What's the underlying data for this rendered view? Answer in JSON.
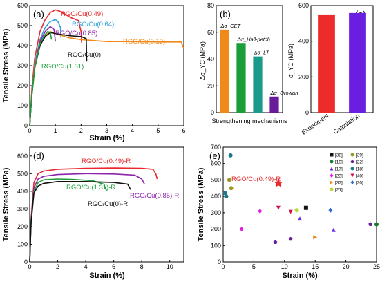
{
  "chart_data": [
    {
      "panel": "(a)",
      "type": "line",
      "xlabel": "Strain (%)",
      "ylabel": "Tensile Stress (MPa)",
      "xlim": [
        0,
        6
      ],
      "ylim": [
        0,
        600
      ],
      "xticks": [
        0,
        1,
        2,
        3,
        4,
        5,
        6
      ],
      "yticks": [
        0,
        100,
        200,
        300,
        400,
        500,
        600
      ],
      "series": [
        {
          "name": "RGO/Cu(0.49)",
          "color": "#e8282a",
          "x": [
            0,
            0.08,
            0.2,
            0.4,
            0.6,
            0.8,
            1.0,
            1.2,
            1.4,
            1.6,
            1.8,
            1.9,
            2.0,
            2.02
          ],
          "y": [
            0,
            180,
            340,
            470,
            530,
            565,
            578,
            570,
            555,
            540,
            530,
            525,
            470,
            415
          ]
        },
        {
          "name": "RGO/Cu(0.64)",
          "color": "#2aa0dc",
          "x": [
            0,
            0.08,
            0.2,
            0.4,
            0.6,
            0.8,
            1.0,
            1.1,
            1.2,
            1.22
          ],
          "y": [
            0,
            160,
            310,
            430,
            490,
            520,
            530,
            520,
            490,
            440
          ]
        },
        {
          "name": "RGO/Cu(0.85)",
          "color": "#8e24aa",
          "x": [
            0,
            0.08,
            0.2,
            0.4,
            0.6,
            0.8,
            0.95,
            1.0
          ],
          "y": [
            0,
            150,
            300,
            420,
            470,
            495,
            480,
            420
          ]
        },
        {
          "name": "RGO/Cu(0.19)",
          "color": "#f0891a",
          "x": [
            0,
            0.08,
            0.2,
            0.4,
            0.6,
            0.8,
            1.0,
            1.5,
            2.0,
            3.0,
            4.0,
            5.0,
            5.9,
            6.0
          ],
          "y": [
            0,
            160,
            300,
            400,
            450,
            470,
            460,
            440,
            430,
            420,
            420,
            418,
            418,
            385
          ]
        },
        {
          "name": "RGO/Cu(0)",
          "color": "#111111",
          "x": [
            0,
            0.08,
            0.2,
            0.4,
            0.6,
            0.8,
            1.0,
            1.5,
            2.0,
            2.2,
            2.22
          ],
          "y": [
            0,
            150,
            290,
            400,
            445,
            465,
            460,
            450,
            445,
            435,
            320
          ]
        },
        {
          "name": "RGO/Cu(1.31)",
          "color": "#1b9e3a",
          "x": [
            0,
            0.08,
            0.2,
            0.4,
            0.6,
            0.7,
            0.8,
            0.85
          ],
          "y": [
            0,
            150,
            290,
            410,
            455,
            470,
            465,
            430
          ]
        }
      ]
    },
    {
      "panel": "(b)",
      "type": "bar",
      "xlabel": "Strengthening mechanisms",
      "ylabel": "Δσ_YC (MPa)",
      "ylim": [
        0,
        80
      ],
      "yticks": [
        0,
        20,
        40,
        60,
        80
      ],
      "categories": [
        "Δσ_CET",
        "Δσ_Hall-petch",
        "Δσ_LT",
        "Δσ_Orowan"
      ],
      "values": [
        62,
        52,
        42,
        12
      ],
      "colors": [
        "#f0891a",
        "#1b9e3a",
        "#1a9a8a",
        "#6a1b9a"
      ]
    },
    {
      "panel": "(c)",
      "type": "bar",
      "ylabel": "σ_YC (MPa)",
      "ylim": [
        0,
        600
      ],
      "yticks": [
        0,
        200,
        400,
        600
      ],
      "categories": [
        "Experiment",
        "Calculation"
      ],
      "values": [
        550,
        558
      ],
      "colors": [
        "#ee2b2b",
        "#6a1fe0"
      ]
    },
    {
      "panel": "(d)",
      "type": "line",
      "xlabel": "Strain (%)",
      "ylabel": "Tensile Stress (MPa)",
      "xlim": [
        0,
        11
      ],
      "ylim": [
        0,
        650
      ],
      "xticks": [
        0,
        2,
        4,
        6,
        8,
        10
      ],
      "yticks": [
        0,
        100,
        200,
        300,
        400,
        500,
        600
      ],
      "series": [
        {
          "name": "RGO/Cu(0.49)-R",
          "color": "#e8282a",
          "x": [
            0,
            0.1,
            0.3,
            0.6,
            1.0,
            2.0,
            4.0,
            6.0,
            8.0,
            8.8,
            9.0,
            9.1
          ],
          "y": [
            0,
            250,
            450,
            500,
            515,
            525,
            530,
            532,
            530,
            525,
            500,
            470
          ]
        },
        {
          "name": "RGO/Cu(0.85)-R",
          "color": "#8e24aa",
          "x": [
            0,
            0.1,
            0.3,
            0.6,
            1.0,
            2.0,
            4.0,
            6.0,
            7.5,
            8.0,
            8.2
          ],
          "y": [
            0,
            240,
            420,
            470,
            485,
            495,
            500,
            498,
            492,
            470,
            440
          ]
        },
        {
          "name": "RGO/Cu(1.31)-R",
          "color": "#1b9e3a",
          "x": [
            0,
            0.1,
            0.3,
            0.6,
            1.0,
            2.0,
            3.0,
            4.5,
            5.3,
            5.5
          ],
          "y": [
            0,
            230,
            400,
            450,
            465,
            470,
            468,
            460,
            440,
            400
          ]
        },
        {
          "name": "RGO/Cu(0)-R",
          "color": "#111111",
          "x": [
            0,
            0.1,
            0.3,
            0.6,
            1.0,
            2.0,
            4.0,
            6.0,
            7.0,
            7.2
          ],
          "y": [
            0,
            220,
            390,
            430,
            445,
            455,
            455,
            450,
            440,
            410
          ]
        }
      ]
    },
    {
      "panel": "(e)",
      "type": "scatter",
      "xlabel": "Strain (%)",
      "ylabel": "Tensile Stress (MPa)",
      "xlim": [
        0,
        25
      ],
      "ylim": [
        0,
        700
      ],
      "xticks": [
        0,
        5,
        10,
        15,
        20,
        25
      ],
      "yticks": [
        0,
        100,
        200,
        300,
        400,
        500,
        600,
        700
      ],
      "highlight": {
        "name": "RGO/Cu(0.49)-R",
        "x": 9,
        "y": 480,
        "color": "#e8282a"
      },
      "series": [
        {
          "name": "[38]",
          "marker": "square",
          "color": "#111111",
          "points": [
            [
              13.5,
              330
            ]
          ]
        },
        {
          "name": "[39]",
          "marker": "circle",
          "color": "#9a9a22",
          "points": [
            [
              1.0,
              500
            ],
            [
              1.3,
              450
            ]
          ]
        },
        {
          "name": "[19]",
          "marker": "circle",
          "color": "#1b7a32",
          "points": [
            [
              25,
              230
            ]
          ]
        },
        {
          "name": "[22]",
          "marker": "pentagon",
          "color": "#6a1b9a",
          "points": [
            [
              8.5,
              120
            ],
            [
              11,
              140
            ],
            [
              24,
              230
            ]
          ]
        },
        {
          "name": "[17]",
          "marker": "triangle-up",
          "color": "#6a2fe0",
          "points": [
            [
              12.5,
              265
            ],
            [
              18,
              195
            ]
          ]
        },
        {
          "name": "[18]",
          "marker": "circle",
          "color": "#1a7a8a",
          "points": [
            [
              1.2,
              650
            ],
            [
              0.3,
              420
            ],
            [
              0.5,
              400
            ]
          ]
        },
        {
          "name": "[23]",
          "marker": "diamond",
          "color": "#e020e0",
          "points": [
            [
              3,
              200
            ],
            [
              6,
              310
            ]
          ]
        },
        {
          "name": "[40]",
          "marker": "triangle-down",
          "color": "#d0104e",
          "points": [
            [
              9,
              330
            ],
            [
              11,
              305
            ]
          ]
        },
        {
          "name": "[37]",
          "marker": "triangle-right",
          "color": "#f0891a",
          "points": [
            [
              15,
              150
            ]
          ]
        },
        {
          "name": "[20]",
          "marker": "diamond",
          "color": "#2a6ad8",
          "points": [
            [
              17.5,
              315
            ]
          ]
        },
        {
          "name": "[21]",
          "marker": "circle",
          "color": "#b8d83a",
          "points": [
            [
              12,
              315
            ]
          ]
        }
      ]
    }
  ]
}
